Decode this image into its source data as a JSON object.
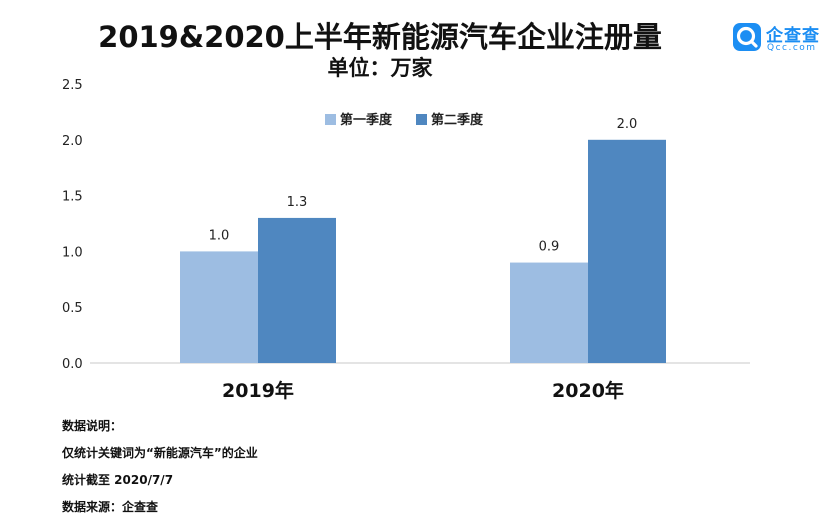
{
  "title": "2019&2020上半年新能源汽车企业注册量",
  "subtitle": "单位：万家",
  "logo": {
    "name": "企查查",
    "domain": "Qcc.com",
    "color": "#1c8ef3"
  },
  "notes": [
    "数据说明：",
    "仅统计关键词为“新能源汽车”的企业",
    "统计截至 2020/7/7",
    "数据来源：企查查"
  ],
  "chart_data": {
    "type": "bar",
    "categories": [
      "2019年",
      "2020年"
    ],
    "series": [
      {
        "name": "第一季度",
        "values": [
          1.0,
          0.9
        ],
        "labels": [
          "1.0",
          "0.9"
        ],
        "color": "#9dbde2"
      },
      {
        "name": "第二季度",
        "values": [
          1.3,
          2.0
        ],
        "labels": [
          "1.3",
          "2.0"
        ],
        "color": "#4f87c0"
      }
    ],
    "yticks": [
      "0.0",
      "0.5",
      "1.0",
      "1.5",
      "2.0",
      "2.5"
    ],
    "ylim": [
      0,
      2.5
    ],
    "grid": false,
    "legend": "top-center"
  }
}
